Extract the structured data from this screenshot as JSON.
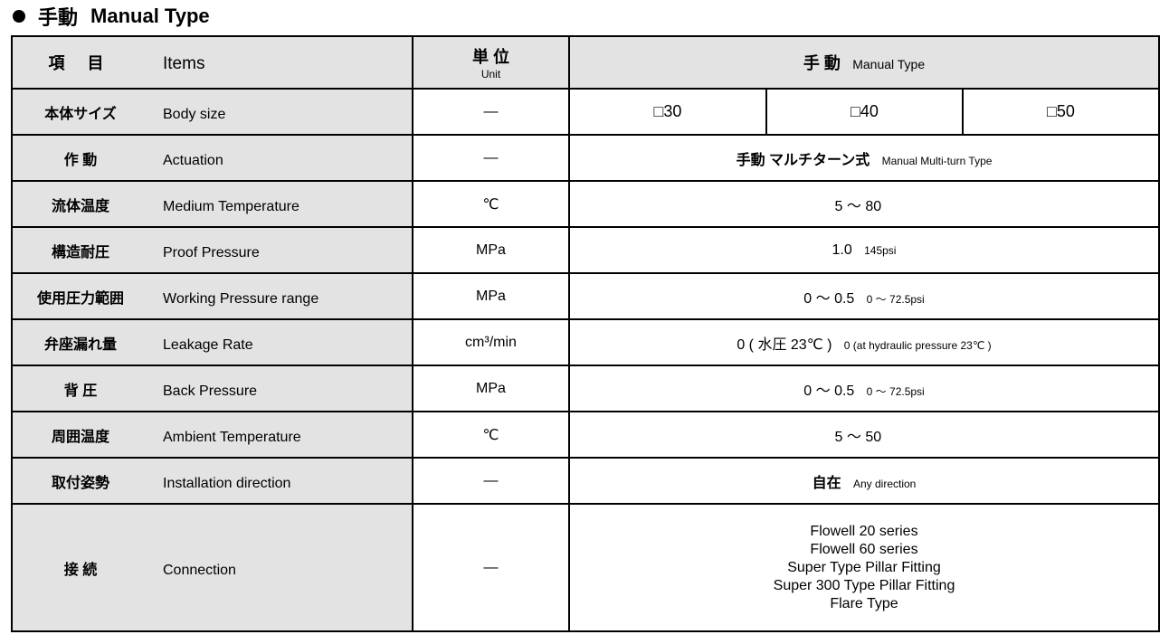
{
  "title": {
    "jp": "手動",
    "en": "Manual Type"
  },
  "header": {
    "items_jp": "項 目",
    "items_en": "Items",
    "unit_jp": "単 位",
    "unit_en": "Unit",
    "type_jp": "手 動",
    "type_en": "Manual Type"
  },
  "sizes": [
    "□30",
    "□40",
    "□50"
  ],
  "rows": [
    {
      "jp": "本体サイズ",
      "en": "Body size",
      "unit": "—"
    },
    {
      "jp": "作 動",
      "en": "Actuation",
      "unit": "—",
      "val": "手動 マルチターン式",
      "val_small": "Manual Multi-turn Type"
    },
    {
      "jp": "流体温度",
      "en": "Medium Temperature",
      "unit": "℃",
      "val": "5 ～ 80",
      "val_small": ""
    },
    {
      "jp": "構造耐圧",
      "en": "Proof Pressure",
      "unit": "MPa",
      "val": "1.0",
      "val_small": "145psi"
    },
    {
      "jp": "使用圧力範囲",
      "en": "Working Pressure range",
      "unit": "MPa",
      "val": "0 ～ 0.5",
      "val_small": "0 ～ 72.5psi"
    },
    {
      "jp": "弁座漏れ量",
      "en": "Leakage Rate",
      "unit": "cm³/min",
      "val": "0 ( 水圧 23℃ )",
      "val_small": "0 (at hydraulic pressure 23℃ )"
    },
    {
      "jp": "背 圧",
      "en": "Back Pressure",
      "unit": "MPa",
      "val": "0 ～ 0.5",
      "val_small": "0 ～ 72.5psi"
    },
    {
      "jp": "周囲温度",
      "en": "Ambient Temperature",
      "unit": "℃",
      "val": "5 ～ 50",
      "val_small": ""
    },
    {
      "jp": "取付姿勢",
      "en": "Installation direction",
      "unit": "—",
      "val": "自在",
      "val_small": "Any direction"
    },
    {
      "jp": "接 続",
      "en": "Connection",
      "unit": "—",
      "lines": [
        "Flowell 20 series",
        "Flowell 60 series",
        "Super Type Pillar Fitting",
        "Super 300 Type Pillar Fitting",
        "Flare Type"
      ]
    }
  ]
}
